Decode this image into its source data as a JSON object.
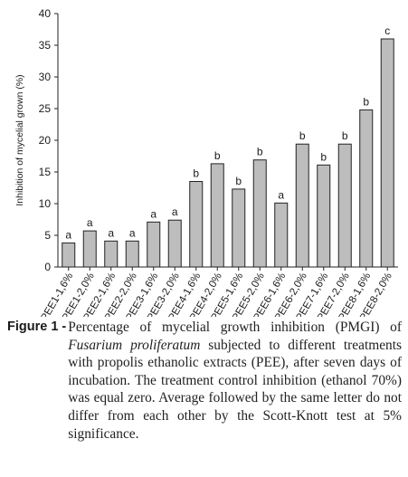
{
  "chart_data": {
    "type": "bar",
    "ylabel": "Inhibition of mycelial grown (%)",
    "xlabel": "",
    "ylim": [
      0,
      40
    ],
    "yticks": [
      0,
      5,
      10,
      15,
      20,
      25,
      30,
      35,
      40
    ],
    "grid": false,
    "bar_color": "#bdbdbd",
    "categories": [
      "PEE1-1,6%",
      "PEE1-2,0%",
      "PEE2-1,6%",
      "PEE2-2,0%",
      "PEE3-1,6%",
      "PEE3-2,0%",
      "PEE4-1,6%",
      "PEE4-2,0%",
      "PEE5-1,6%",
      "PEE5-2,0%",
      "PEE6-1,6%",
      "PEE6-2,0%",
      "PEE7-1,6%",
      "PEE7-2,0%",
      "PEE8-1,6%",
      "PEE8-2,0%"
    ],
    "values": [
      3.8,
      5.7,
      4.1,
      4.1,
      7.1,
      7.4,
      13.5,
      16.3,
      12.3,
      16.9,
      10.1,
      19.4,
      16.1,
      19.4,
      24.8,
      36.0
    ],
    "letters": [
      "a",
      "a",
      "a",
      "a",
      "a",
      "a",
      "b",
      "b",
      "b",
      "b",
      "a",
      "b",
      "b",
      "b",
      "b",
      "c"
    ]
  },
  "caption": {
    "label": "Figure 1 -",
    "text_before_italic": "Percentage of mycelial growth inhibition (PMGI) of ",
    "italic": "Fusarium proliferatum",
    "text_after_italic": " subjected to different treatments with propolis ethanolic extracts (PEE), after seven days of incubation. The treatment control inhibition (ethanol 70%) was equal zero. Average followed by the same letter do not differ from each other by the Scott-Knott test at 5% significance."
  }
}
